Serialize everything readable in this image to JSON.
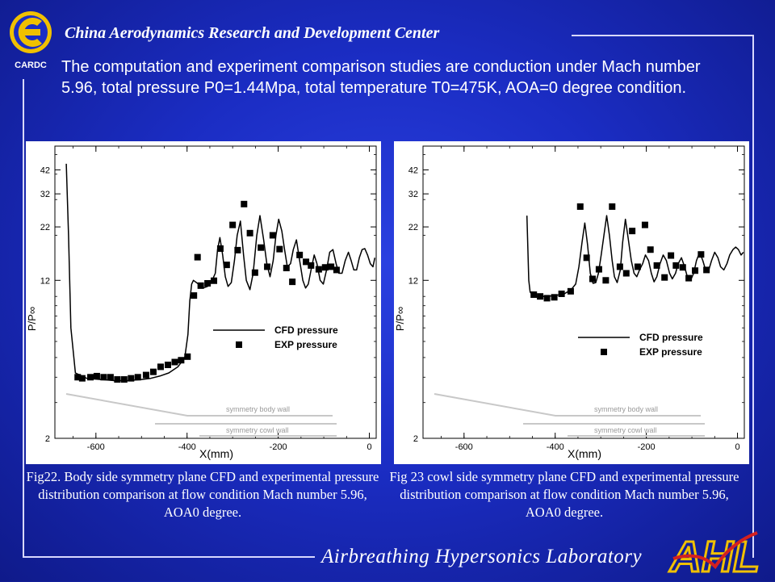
{
  "header": {
    "logo_text": "CARDC",
    "org_name": "China Aerodynamics Research and Development Center"
  },
  "intro_text": "The computation and experiment comparison studies are conduction under Mach number 5.96, total pressure P0=1.44Mpa, total temperature T0=475K, AOA=0 degree condition.",
  "footer": {
    "lab_name": "Airbreathing Hypersonics Laboratory",
    "lab_logo_text": "AHL"
  },
  "colors": {
    "background": "#1b2dc4",
    "text": "#ffffff",
    "logo_red": "#d42020",
    "logo_yellow": "#f0c000"
  },
  "chart_data": [
    {
      "type": "line",
      "caption": "Fig22.  Body side symmetry plane CFD and experimental pressure distribution comparison at flow condition Mach number 5.96, AOA0 degree.",
      "ylabel": "P/P∞",
      "xlabel": "X(mm)",
      "y_scale": "log",
      "xlim": [
        -690,
        15
      ],
      "ylim": [
        2,
        55
      ],
      "x_ticks": [
        -600,
        -400,
        -200,
        0
      ],
      "x_tick_labels": [
        "-600",
        "-400",
        "-200",
        "0"
      ],
      "y_ticks": [
        2,
        12,
        22,
        32,
        42
      ],
      "y_tick_labels": [
        "2",
        "12",
        "22",
        "32",
        "42"
      ],
      "legend": {
        "position": "right",
        "entries": [
          "CFD pressure",
          "EXP pressure"
        ]
      },
      "annotations": [
        "symmetry body wall",
        "symmetry cowl wall"
      ],
      "series": [
        {
          "name": "CFD pressure",
          "style": "line",
          "x": [
            -665,
            -660,
            -655,
            -645,
            -620,
            -590,
            -560,
            -530,
            -500,
            -480,
            -460,
            -440,
            -420,
            -405,
            -398,
            -394,
            -390,
            -386,
            -375,
            -365,
            -355,
            -345,
            -338,
            -333,
            -328,
            -322,
            -316,
            -310,
            -303,
            -296,
            -290,
            -283,
            -276,
            -270,
            -262,
            -255,
            -247,
            -240,
            -232,
            -225,
            -218,
            -211,
            -205,
            -199,
            -192,
            -186,
            -180,
            -173,
            -167,
            -160,
            -153,
            -146,
            -140,
            -134,
            -128,
            -121,
            -115,
            -108,
            -101,
            -94,
            -87,
            -80,
            -73,
            -67,
            -60,
            -53,
            -46,
            -40,
            -34,
            -28,
            -22,
            -16,
            -10,
            -4,
            2,
            8,
            12
          ],
          "y": [
            45,
            20,
            7,
            4.2,
            3.95,
            3.9,
            3.85,
            3.85,
            3.9,
            3.95,
            4.05,
            4.2,
            4.5,
            5.0,
            6.5,
            9.5,
            11.5,
            12.0,
            11.5,
            11.0,
            11.2,
            12.0,
            13,
            17,
            19.5,
            16.0,
            12.5,
            11.2,
            11.7,
            15,
            20,
            23.5,
            16,
            12,
            10.8,
            13,
            20,
            25,
            19,
            14.5,
            12.5,
            15,
            20,
            24,
            21,
            17,
            14,
            14.5,
            17,
            19,
            15,
            12,
            11,
            11.5,
            13.5,
            16,
            14.5,
            12,
            11.5,
            13.5,
            16.5,
            17,
            14.5,
            13,
            13,
            15,
            16.5,
            15,
            13.5,
            13.5,
            15.5,
            17,
            17.2,
            16,
            14.5,
            14,
            15.5
          ]
        },
        {
          "name": "EXP pressure",
          "style": "markers",
          "x": [
            -640,
            -630,
            -612,
            -598,
            -583,
            -568,
            -553,
            -538,
            -523,
            -508,
            -490,
            -474,
            -458,
            -442,
            -427,
            -413,
            -399,
            -385,
            -377,
            -370,
            -355,
            -341,
            -327,
            -313,
            -300,
            -289,
            -275,
            -262,
            -251,
            -238,
            -224,
            -212,
            -197,
            -182,
            -169,
            -153,
            -139,
            -128,
            -111,
            -97,
            -84,
            -72
          ],
          "y": [
            4.0,
            3.95,
            4.0,
            4.05,
            4.0,
            4.0,
            3.9,
            3.9,
            3.95,
            4.0,
            4.1,
            4.25,
            4.5,
            4.6,
            4.75,
            4.85,
            5.05,
            10.1,
            15.6,
            11.3,
            11.6,
            11.95,
            17.2,
            14.3,
            22.5,
            16.9,
            28.5,
            20.5,
            13.1,
            17.4,
            14.0,
            20.0,
            17.1,
            13.8,
            11.8,
            16.0,
            14.8,
            14.2,
            13.6,
            13.9,
            14.0,
            13.5
          ]
        }
      ]
    },
    {
      "type": "line",
      "caption": "Fig 23 cowl side symmetry plane CFD and experimental pressure distribution comparison at flow condition Mach number 5.96, AOA0 degree.",
      "ylabel": "P/P∞",
      "xlabel": "X(mm)",
      "y_scale": "log",
      "xlim": [
        -690,
        15
      ],
      "ylim": [
        2,
        55
      ],
      "x_ticks": [
        -600,
        -400,
        -200,
        0
      ],
      "x_tick_labels": [
        "-600",
        "-400",
        "-200",
        "0"
      ],
      "y_ticks": [
        2,
        12,
        22,
        32,
        42
      ],
      "y_tick_labels": [
        "2",
        "12",
        "22",
        "32",
        "42"
      ],
      "legend": {
        "position": "right",
        "entries": [
          "CFD pressure",
          "EXP pressure"
        ]
      },
      "annotations": [
        "symmetry body wall",
        "symmetry cowl wall"
      ],
      "series": [
        {
          "name": "CFD pressure",
          "style": "line",
          "x": [
            -462,
            -458,
            -455,
            -450,
            -440,
            -420,
            -400,
            -380,
            -365,
            -355,
            -348,
            -341,
            -335,
            -329,
            -323,
            -317,
            -311,
            -305,
            -299,
            -293,
            -287,
            -281,
            -275,
            -270,
            -264,
            -257,
            -252,
            -246,
            -240,
            -233,
            -227,
            -221,
            -215,
            -208,
            -202,
            -195,
            -189,
            -183,
            -177,
            -170,
            -163,
            -156,
            -149,
            -143,
            -136,
            -130,
            -123,
            -116,
            -110,
            -103,
            -96,
            -90,
            -83,
            -76,
            -70,
            -63,
            -57,
            -50,
            -43,
            -37,
            -30,
            -23,
            -17,
            -10,
            -4,
            2,
            8,
            13
          ],
          "y": [
            25,
            12,
            10.5,
            10.2,
            10.0,
            10.0,
            10.1,
            10.3,
            10.8,
            11.5,
            14,
            18.5,
            23,
            18,
            13,
            11.6,
            11.7,
            13,
            16,
            20,
            25,
            20,
            15,
            12.5,
            11.7,
            13.5,
            18.5,
            24,
            19.5,
            15,
            13,
            12.5,
            13.5,
            14.5,
            16,
            15,
            13,
            11.8,
            12.5,
            14.5,
            16,
            15,
            13,
            12.2,
            13,
            14.5,
            15.5,
            14,
            12.5,
            12,
            13,
            15,
            16.5,
            15,
            13.5,
            13.5,
            15,
            16.5,
            15.5,
            14,
            13.5,
            14.5,
            16,
            17,
            17.5,
            17,
            16,
            16.5
          ]
        },
        {
          "name": "EXP pressure",
          "style": "markers",
          "x": [
            -447,
            -433,
            -418,
            -402,
            -386,
            -366,
            -345,
            -331,
            -318,
            -304,
            -289,
            -275,
            -258,
            -244,
            -231,
            -219,
            -203,
            -191,
            -177,
            -160,
            -146,
            -135,
            -120,
            -107,
            -93,
            -80,
            -68
          ],
          "y": [
            10.2,
            10.0,
            9.8,
            9.9,
            10.3,
            10.6,
            27.7,
            15.5,
            12.2,
            13.6,
            12.0,
            27.7,
            14.0,
            13.0,
            21.0,
            14.0,
            22.5,
            17.0,
            14.2,
            12.4,
            15.9,
            14.2,
            13.9,
            12.3,
            13.4,
            16.1,
            13.5
          ]
        }
      ]
    }
  ]
}
